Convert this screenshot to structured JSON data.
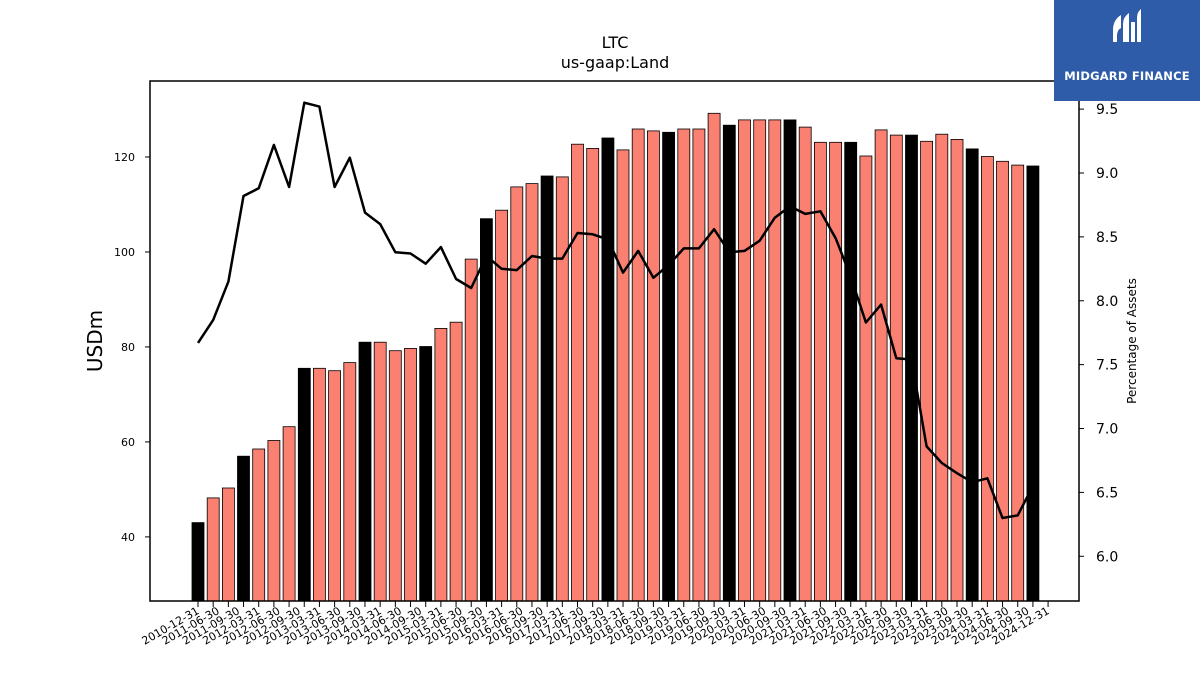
{
  "chart_data": {
    "type": "bar",
    "title": "LTC",
    "subtitle": "us-gaap:Land",
    "ylabel": "USDm",
    "y2label": "Percentage of Assets",
    "ylim": [
      26.5,
      136
    ],
    "y2lim": [
      5.65,
      9.72
    ],
    "yticks": [
      40,
      60,
      80,
      100,
      120
    ],
    "y2ticks": [
      6.0,
      6.5,
      7.0,
      7.5,
      8.0,
      8.5,
      9.0,
      9.5
    ],
    "categories": [
      "2010-12-31",
      "2011-03-31",
      "2011-06-30",
      "2011-09-30",
      "2011-12-31",
      "2012-03-31",
      "2012-06-30",
      "2012-09-30",
      "2012-12-31",
      "2013-03-31",
      "2013-06-30",
      "2013-09-30",
      "2013-12-31",
      "2014-03-31",
      "2014-06-30",
      "2014-09-30",
      "2014-12-31",
      "2015-03-31",
      "2015-06-30",
      "2015-09-30",
      "2015-12-31",
      "2016-03-31",
      "2016-06-30",
      "2016-09-30",
      "2016-12-31",
      "2017-03-31",
      "2017-06-30",
      "2017-09-30",
      "2017-12-31",
      "2018-03-31",
      "2018-06-30",
      "2018-09-30",
      "2018-12-31",
      "2019-03-31",
      "2019-06-30",
      "2019-09-30",
      "2019-12-31",
      "2020-03-31",
      "2020-06-30",
      "2020-09-30",
      "2020-12-31",
      "2021-03-31",
      "2021-06-30",
      "2021-09-30",
      "2021-12-31",
      "2022-03-31",
      "2022-06-30",
      "2022-09-30",
      "2022-12-31",
      "2023-03-31",
      "2023-06-30",
      "2023-09-30",
      "2023-12-31",
      "2024-03-31",
      "2024-06-30",
      "2024-09-30",
      "2024-12-31"
    ],
    "x_tick_labels": [
      "2010-12-31",
      "2011-06-30",
      "2011-09-30",
      "2012-03-31",
      "2012-06-30",
      "2012-09-30",
      "2013-03-31",
      "2013-06-30",
      "2013-09-30",
      "2014-03-31",
      "2014-06-30",
      "2014-09-30",
      "2015-03-31",
      "2015-06-30",
      "2015-09-30",
      "2016-03-31",
      "2016-06-30",
      "2016-09-30",
      "2017-03-31",
      "2017-06-30",
      "2017-09-30",
      "2018-03-31",
      "2018-06-30",
      "2018-09-30",
      "2019-03-31",
      "2019-06-30",
      "2019-09-30",
      "2020-03-31",
      "2020-06-30",
      "2020-09-30",
      "2021-03-31",
      "2021-06-30",
      "2021-09-30",
      "2022-03-31",
      "2022-06-30",
      "2022-09-30",
      "2023-03-31",
      "2023-06-30",
      "2023-09-30",
      "2024-03-31",
      "2024-06-30",
      "2024-09-30",
      "2024-12-31"
    ],
    "series": [
      {
        "role": "bars",
        "values": [
          43,
          48.2,
          50.3,
          57,
          58.5,
          60.3,
          63.2,
          75.5,
          75.5,
          75,
          76.7,
          81,
          81,
          79.2,
          79.7,
          80.1,
          83.9,
          85.2,
          98.5,
          107,
          108.8,
          113.7,
          114.4,
          116,
          115.8,
          122.7,
          121.8,
          124,
          121.5,
          125.9,
          125.5,
          125.2,
          125.9,
          125.9,
          129.2,
          126.7,
          127.8,
          127.8,
          127.8,
          127.8,
          126.3,
          123.1,
          123.1,
          123.1,
          120.2,
          125.7,
          124.6,
          124.6,
          123.3,
          124.8,
          123.7,
          121.7,
          120.1,
          119.1,
          118.3,
          118.1,
          null
        ],
        "highlight": [
          true,
          false,
          false,
          true,
          false,
          false,
          false,
          true,
          false,
          false,
          false,
          true,
          false,
          false,
          false,
          true,
          false,
          false,
          false,
          true,
          false,
          false,
          false,
          true,
          false,
          false,
          false,
          true,
          false,
          false,
          false,
          true,
          false,
          false,
          false,
          true,
          false,
          false,
          false,
          true,
          false,
          false,
          false,
          true,
          false,
          false,
          false,
          true,
          false,
          false,
          false,
          true,
          false,
          false,
          false,
          true,
          false
        ]
      },
      {
        "role": "line",
        "values": [
          7.67,
          7.85,
          8.15,
          8.82,
          8.88,
          9.22,
          8.89,
          9.55,
          9.52,
          8.89,
          9.12,
          8.69,
          8.6,
          8.38,
          8.37,
          8.29,
          8.42,
          8.17,
          8.1,
          8.35,
          8.25,
          8.24,
          8.35,
          8.33,
          8.33,
          8.53,
          8.52,
          8.48,
          8.22,
          8.39,
          8.18,
          8.28,
          8.41,
          8.41,
          8.56,
          8.38,
          8.39,
          8.47,
          8.65,
          8.74,
          8.68,
          8.7,
          8.49,
          8.19,
          7.83,
          7.97,
          7.55,
          7.54,
          6.86,
          6.73,
          6.65,
          6.58,
          6.61,
          6.3,
          6.32,
          6.55,
          null
        ]
      }
    ],
    "colors": {
      "bar": "#fa8072",
      "bar_highlight": "#000000",
      "line": "#000000"
    }
  },
  "logo": {
    "text": "MIDGARD FINANCE"
  }
}
